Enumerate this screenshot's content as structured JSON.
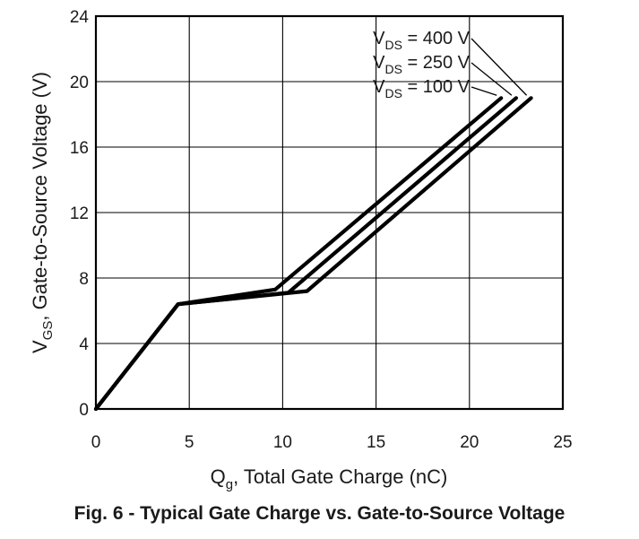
{
  "chart_data": {
    "type": "line",
    "title": "Fig. 6 - Typical Gate Charge vs. Gate-to-Source Voltage",
    "xlabel": {
      "main": "Q",
      "sub": "g",
      "rest": ", Total Gate Charge (nC)"
    },
    "ylabel": {
      "main": "V",
      "sub": "GS",
      "rest": ", Gate-to-Source Voltage (V)"
    },
    "xlim": [
      0,
      25
    ],
    "ylim": [
      0,
      24
    ],
    "xticks": [
      0,
      5,
      10,
      15,
      20,
      25
    ],
    "yticks": [
      0,
      4,
      8,
      12,
      16,
      20,
      24
    ],
    "grid": true,
    "series": [
      {
        "name": "VDS = 400 V",
        "label_main": "V",
        "label_sub": "DS",
        "label_rest": " = 400 V",
        "x": [
          0,
          4.4,
          11.3,
          23.3
        ],
        "y": [
          0,
          6.4,
          7.2,
          19.0
        ]
      },
      {
        "name": "VDS = 250 V",
        "label_main": "V",
        "label_sub": "DS",
        "label_rest": " = 250 V",
        "x": [
          0,
          4.4,
          10.3,
          22.5
        ],
        "y": [
          0,
          6.4,
          7.1,
          19.0
        ]
      },
      {
        "name": "VDS = 100 V",
        "label_main": "V",
        "label_sub": "DS",
        "label_rest": " = 100 V",
        "x": [
          0,
          4.4,
          9.6,
          21.7
        ],
        "y": [
          0,
          6.4,
          7.3,
          19.0
        ]
      }
    ]
  }
}
